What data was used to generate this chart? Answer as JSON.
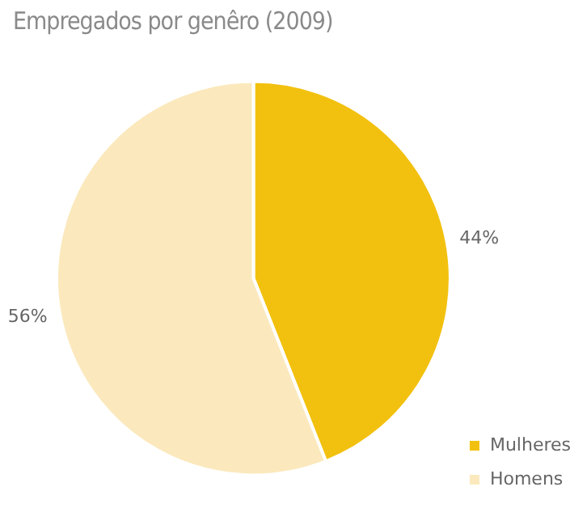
{
  "chart_data": {
    "type": "pie",
    "title": "Empregados por genêro (2009)",
    "categories": [
      "Mulheres",
      "Homens"
    ],
    "values": [
      44,
      56
    ],
    "colors": [
      "#f2c10f",
      "#fbe9bd"
    ],
    "value_labels": [
      "44%",
      "56%"
    ],
    "legend": "bottom right"
  }
}
